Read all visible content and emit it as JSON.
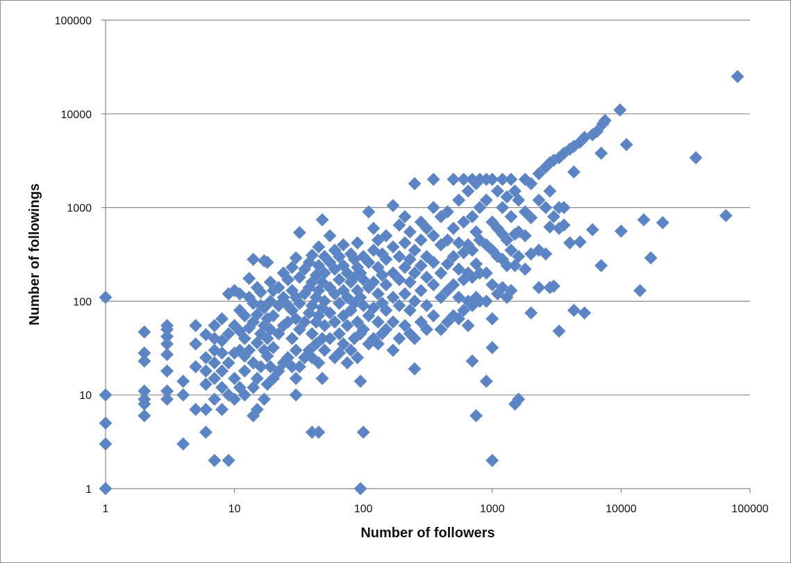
{
  "chart_data": {
    "type": "scatter",
    "title": "",
    "xlabel": "Number of followers",
    "ylabel": "Number of followings",
    "x_scale": "log",
    "y_scale": "log",
    "xlim": [
      1,
      100000
    ],
    "ylim": [
      1,
      100000
    ],
    "x_ticks": [
      "1",
      "10",
      "100",
      "1000",
      "10000",
      "100000"
    ],
    "y_ticks": [
      "1",
      "10",
      "100",
      "1000",
      "10000",
      "100000"
    ],
    "grid": "horizontal",
    "legend": "none",
    "marker": "diamond",
    "color": "#5b84c4",
    "points": [
      [
        1,
        1
      ],
      [
        1,
        3
      ],
      [
        1,
        5
      ],
      [
        1,
        10
      ],
      [
        1,
        110
      ],
      [
        2,
        6
      ],
      [
        2,
        8
      ],
      [
        2,
        9
      ],
      [
        2,
        11
      ],
      [
        2,
        23
      ],
      [
        2,
        28
      ],
      [
        2,
        47
      ],
      [
        3,
        9
      ],
      [
        3,
        11
      ],
      [
        3,
        18
      ],
      [
        3,
        27
      ],
      [
        3,
        35
      ],
      [
        3,
        42
      ],
      [
        3,
        50
      ],
      [
        3,
        55
      ],
      [
        4,
        3
      ],
      [
        4,
        10
      ],
      [
        4,
        14
      ],
      [
        5,
        7
      ],
      [
        5,
        20
      ],
      [
        5,
        35
      ],
      [
        5,
        55
      ],
      [
        6,
        4
      ],
      [
        6,
        7
      ],
      [
        6,
        13
      ],
      [
        6,
        18
      ],
      [
        6,
        25
      ],
      [
        6,
        44
      ],
      [
        7,
        2
      ],
      [
        7,
        9
      ],
      [
        7,
        15
      ],
      [
        7,
        22
      ],
      [
        7,
        30
      ],
      [
        7,
        40
      ],
      [
        7,
        55
      ],
      [
        8,
        7
      ],
      [
        8,
        12
      ],
      [
        8,
        18
      ],
      [
        8,
        28
      ],
      [
        8,
        38
      ],
      [
        8,
        65
      ],
      [
        9,
        2
      ],
      [
        9,
        10
      ],
      [
        9,
        22
      ],
      [
        9,
        45
      ],
      [
        9,
        120
      ],
      [
        10,
        9
      ],
      [
        10,
        15
      ],
      [
        10,
        28
      ],
      [
        10,
        55
      ],
      [
        10,
        130
      ],
      [
        11,
        12
      ],
      [
        11,
        30
      ],
      [
        11,
        48
      ],
      [
        11,
        80
      ],
      [
        11,
        120
      ],
      [
        12,
        10
      ],
      [
        12,
        18
      ],
      [
        12,
        26
      ],
      [
        12,
        40
      ],
      [
        12,
        70
      ],
      [
        13,
        30
      ],
      [
        13,
        52
      ],
      [
        13,
        110
      ],
      [
        13,
        175
      ],
      [
        14,
        6
      ],
      [
        14,
        12
      ],
      [
        14,
        22
      ],
      [
        14,
        60
      ],
      [
        14,
        95
      ],
      [
        14,
        280
      ],
      [
        15,
        7
      ],
      [
        15,
        15
      ],
      [
        15,
        36
      ],
      [
        15,
        72
      ],
      [
        15,
        140
      ],
      [
        16,
        20
      ],
      [
        16,
        45
      ],
      [
        16,
        90
      ],
      [
        16,
        125
      ],
      [
        17,
        9
      ],
      [
        17,
        30
      ],
      [
        17,
        55
      ],
      [
        17,
        85
      ],
      [
        17,
        270
      ],
      [
        18,
        13
      ],
      [
        18,
        26
      ],
      [
        18,
        40
      ],
      [
        18,
        65
      ],
      [
        18,
        260
      ],
      [
        19,
        20
      ],
      [
        19,
        50
      ],
      [
        19,
        100
      ],
      [
        19,
        160
      ],
      [
        20,
        15
      ],
      [
        20,
        32
      ],
      [
        20,
        70
      ],
      [
        20,
        130
      ],
      [
        22,
        18
      ],
      [
        22,
        45
      ],
      [
        22,
        90
      ],
      [
        22,
        140
      ],
      [
        24,
        22
      ],
      [
        24,
        55
      ],
      [
        24,
        110
      ],
      [
        24,
        200
      ],
      [
        26,
        25
      ],
      [
        26,
        60
      ],
      [
        26,
        90
      ],
      [
        26,
        170
      ],
      [
        28,
        20
      ],
      [
        28,
        40
      ],
      [
        28,
        80
      ],
      [
        28,
        130
      ],
      [
        28,
        230
      ],
      [
        30,
        10
      ],
      [
        30,
        15
      ],
      [
        30,
        30
      ],
      [
        30,
        65
      ],
      [
        30,
        110
      ],
      [
        30,
        290
      ],
      [
        32,
        20
      ],
      [
        32,
        50
      ],
      [
        32,
        95
      ],
      [
        32,
        180
      ],
      [
        32,
        540
      ],
      [
        35,
        25
      ],
      [
        35,
        60
      ],
      [
        35,
        120
      ],
      [
        35,
        220
      ],
      [
        38,
        30
      ],
      [
        38,
        75
      ],
      [
        38,
        140
      ],
      [
        38,
        260
      ],
      [
        40,
        4
      ],
      [
        40,
        25
      ],
      [
        40,
        45
      ],
      [
        40,
        90
      ],
      [
        40,
        160
      ],
      [
        40,
        310
      ],
      [
        43,
        35
      ],
      [
        43,
        60
      ],
      [
        43,
        110
      ],
      [
        43,
        190
      ],
      [
        45,
        4
      ],
      [
        45,
        22
      ],
      [
        45,
        70
      ],
      [
        45,
        130
      ],
      [
        45,
        240
      ],
      [
        45,
        380
      ],
      [
        48,
        15
      ],
      [
        48,
        40
      ],
      [
        48,
        85
      ],
      [
        48,
        160
      ],
      [
        48,
        740
      ],
      [
        50,
        30
      ],
      [
        50,
        55
      ],
      [
        50,
        100
      ],
      [
        50,
        200
      ],
      [
        50,
        300
      ],
      [
        55,
        40
      ],
      [
        55,
        75
      ],
      [
        55,
        140
      ],
      [
        55,
        260
      ],
      [
        55,
        500
      ],
      [
        60,
        25
      ],
      [
        60,
        60
      ],
      [
        60,
        120
      ],
      [
        60,
        220
      ],
      [
        60,
        350
      ],
      [
        65,
        28
      ],
      [
        65,
        45
      ],
      [
        65,
        95
      ],
      [
        65,
        170
      ],
      [
        65,
        300
      ],
      [
        70,
        35
      ],
      [
        70,
        70
      ],
      [
        70,
        130
      ],
      [
        70,
        240
      ],
      [
        70,
        400
      ],
      [
        75,
        22
      ],
      [
        75,
        55
      ],
      [
        75,
        110
      ],
      [
        75,
        200
      ],
      [
        80,
        30
      ],
      [
        80,
        80
      ],
      [
        80,
        160
      ],
      [
        80,
        320
      ],
      [
        85,
        40
      ],
      [
        85,
        95
      ],
      [
        85,
        180
      ],
      [
        85,
        280
      ],
      [
        90,
        25
      ],
      [
        90,
        60
      ],
      [
        90,
        130
      ],
      [
        90,
        230
      ],
      [
        90,
        420
      ],
      [
        95,
        1
      ],
      [
        95,
        14
      ],
      [
        95,
        45
      ],
      [
        95,
        110
      ],
      [
        95,
        200
      ],
      [
        100,
        4
      ],
      [
        100,
        50
      ],
      [
        100,
        90
      ],
      [
        100,
        170
      ],
      [
        100,
        300
      ],
      [
        110,
        35
      ],
      [
        110,
        70
      ],
      [
        110,
        140
      ],
      [
        110,
        260
      ],
      [
        110,
        900
      ],
      [
        120,
        40
      ],
      [
        120,
        85
      ],
      [
        120,
        160
      ],
      [
        120,
        350
      ],
      [
        120,
        600
      ],
      [
        130,
        35
      ],
      [
        130,
        60
      ],
      [
        130,
        120
      ],
      [
        130,
        230
      ],
      [
        130,
        450
      ],
      [
        140,
        45
      ],
      [
        140,
        95
      ],
      [
        140,
        190
      ],
      [
        140,
        320
      ],
      [
        150,
        50
      ],
      [
        150,
        80
      ],
      [
        150,
        150
      ],
      [
        150,
        280
      ],
      [
        150,
        500
      ],
      [
        170,
        30
      ],
      [
        170,
        60
      ],
      [
        170,
        110
      ],
      [
        170,
        200
      ],
      [
        170,
        380
      ],
      [
        170,
        1050
      ],
      [
        190,
        40
      ],
      [
        190,
        90
      ],
      [
        190,
        170
      ],
      [
        190,
        300
      ],
      [
        190,
        650
      ],
      [
        210,
        55
      ],
      [
        210,
        120
      ],
      [
        210,
        230
      ],
      [
        210,
        420
      ],
      [
        210,
        800
      ],
      [
        230,
        45
      ],
      [
        230,
        80
      ],
      [
        230,
        160
      ],
      [
        230,
        280
      ],
      [
        230,
        550
      ],
      [
        250,
        19
      ],
      [
        250,
        40
      ],
      [
        250,
        100
      ],
      [
        250,
        200
      ],
      [
        250,
        350
      ],
      [
        250,
        1800
      ],
      [
        280,
        60
      ],
      [
        280,
        130
      ],
      [
        280,
        240
      ],
      [
        280,
        450
      ],
      [
        280,
        700
      ],
      [
        310,
        50
      ],
      [
        310,
        90
      ],
      [
        310,
        180
      ],
      [
        310,
        300
      ],
      [
        310,
        600
      ],
      [
        350,
        70
      ],
      [
        350,
        150
      ],
      [
        350,
        260
      ],
      [
        350,
        500
      ],
      [
        350,
        1000
      ],
      [
        350,
        2000
      ],
      [
        400,
        50
      ],
      [
        400,
        110
      ],
      [
        400,
        200
      ],
      [
        400,
        400
      ],
      [
        400,
        800
      ],
      [
        450,
        60
      ],
      [
        450,
        130
      ],
      [
        450,
        250
      ],
      [
        450,
        450
      ],
      [
        450,
        900
      ],
      [
        500,
        70
      ],
      [
        500,
        150
      ],
      [
        500,
        300
      ],
      [
        500,
        600
      ],
      [
        500,
        2000
      ],
      [
        550,
        65
      ],
      [
        550,
        110
      ],
      [
        550,
        220
      ],
      [
        550,
        420
      ],
      [
        550,
        1200
      ],
      [
        600,
        80
      ],
      [
        600,
        170
      ],
      [
        600,
        330
      ],
      [
        600,
        700
      ],
      [
        600,
        2000
      ],
      [
        650,
        55
      ],
      [
        650,
        100
      ],
      [
        650,
        200
      ],
      [
        650,
        400
      ],
      [
        650,
        1500
      ],
      [
        700,
        23
      ],
      [
        700,
        90
      ],
      [
        700,
        180
      ],
      [
        700,
        350
      ],
      [
        700,
        800
      ],
      [
        700,
        2000
      ],
      [
        750,
        6
      ],
      [
        750,
        110
      ],
      [
        750,
        250
      ],
      [
        750,
        550
      ],
      [
        750,
        1800
      ],
      [
        800,
        100
      ],
      [
        800,
        200
      ],
      [
        800,
        450
      ],
      [
        800,
        1000
      ],
      [
        800,
        2000
      ],
      [
        900,
        14
      ],
      [
        900,
        100
      ],
      [
        900,
        200
      ],
      [
        900,
        400
      ],
      [
        900,
        1200
      ],
      [
        900,
        2000
      ],
      [
        1000,
        2
      ],
      [
        1000,
        32
      ],
      [
        1000,
        65
      ],
      [
        1000,
        150
      ],
      [
        1000,
        350
      ],
      [
        1000,
        700
      ],
      [
        1000,
        2000
      ],
      [
        1100,
        120
      ],
      [
        1100,
        300
      ],
      [
        1100,
        600
      ],
      [
        1100,
        1500
      ],
      [
        1200,
        140
      ],
      [
        1200,
        280
      ],
      [
        1200,
        520
      ],
      [
        1200,
        1000
      ],
      [
        1200,
        2000
      ],
      [
        1300,
        110
      ],
      [
        1300,
        240
      ],
      [
        1300,
        450
      ],
      [
        1300,
        1300
      ],
      [
        1400,
        130
      ],
      [
        1400,
        350
      ],
      [
        1400,
        800
      ],
      [
        1400,
        2000
      ],
      [
        1500,
        8
      ],
      [
        1500,
        240
      ],
      [
        1500,
        520
      ],
      [
        1500,
        1500
      ],
      [
        1600,
        9
      ],
      [
        1600,
        300
      ],
      [
        1600,
        550
      ],
      [
        1600,
        1200
      ],
      [
        1800,
        220
      ],
      [
        1800,
        500
      ],
      [
        1800,
        900
      ],
      [
        1800,
        2000
      ],
      [
        2000,
        75
      ],
      [
        2000,
        320
      ],
      [
        2000,
        780
      ],
      [
        2000,
        1800
      ],
      [
        2300,
        140
      ],
      [
        2300,
        350
      ],
      [
        2300,
        1200
      ],
      [
        2300,
        2300
      ],
      [
        2600,
        320
      ],
      [
        2600,
        1000
      ],
      [
        2600,
        2700
      ],
      [
        2800,
        140
      ],
      [
        2800,
        620
      ],
      [
        2800,
        1500
      ],
      [
        2800,
        3000
      ],
      [
        3000,
        145
      ],
      [
        3000,
        800
      ],
      [
        3000,
        3200
      ],
      [
        3300,
        48
      ],
      [
        3300,
        600
      ],
      [
        3300,
        1000
      ],
      [
        3300,
        3400
      ],
      [
        3600,
        650
      ],
      [
        3600,
        1000
      ],
      [
        3600,
        3800
      ],
      [
        4000,
        420
      ],
      [
        4000,
        4200
      ],
      [
        4300,
        80
      ],
      [
        4300,
        2400
      ],
      [
        4300,
        4500
      ],
      [
        4800,
        430
      ],
      [
        4800,
        5000
      ],
      [
        5200,
        75
      ],
      [
        5200,
        5600
      ],
      [
        6000,
        580
      ],
      [
        6000,
        6000
      ],
      [
        6500,
        6500
      ],
      [
        7000,
        240
      ],
      [
        7000,
        3800
      ],
      [
        7200,
        7800
      ],
      [
        7500,
        8500
      ],
      [
        9800,
        11000
      ],
      [
        10000,
        560
      ],
      [
        11000,
        4700
      ],
      [
        14000,
        130
      ],
      [
        15000,
        740
      ],
      [
        17000,
        290
      ],
      [
        21000,
        690
      ],
      [
        38000,
        3400
      ],
      [
        65000,
        820
      ],
      [
        80000,
        25000
      ]
    ]
  }
}
